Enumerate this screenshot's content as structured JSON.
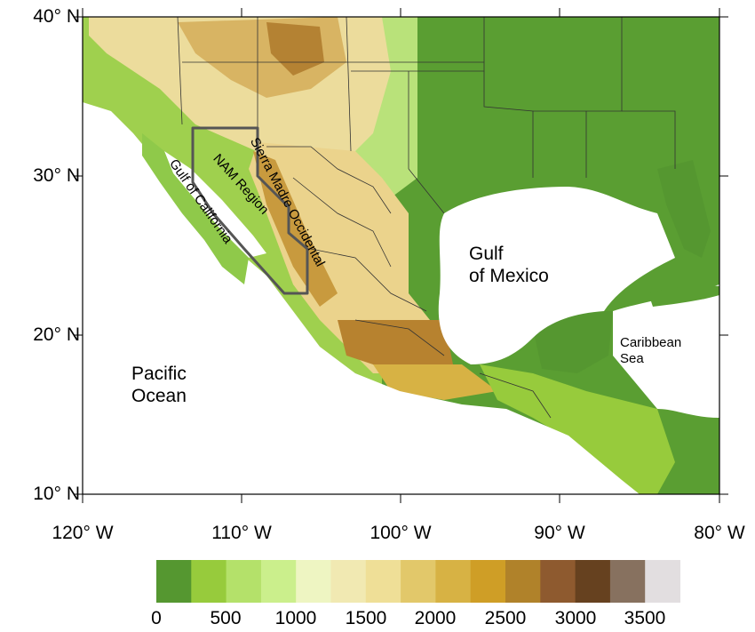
{
  "map": {
    "lat_labels": [
      "40° N",
      "30° N",
      "20° N",
      "10° N"
    ],
    "lon_labels": [
      "120° W",
      "110° W",
      "100° W",
      "90° W",
      "80° W"
    ],
    "places": {
      "pacific": "Pacific\nOcean",
      "gulf_mexico": "Gulf\nof Mexico",
      "caribbean": "Caribbean\nSea",
      "gulf_california": "Gulf of California",
      "nam_region": "NAM Region",
      "sierra": "Sierra Madre Occidental"
    }
  },
  "colorbar": {
    "colors": [
      "#559730",
      "#97cb3c",
      "#b4e16a",
      "#cbef8c",
      "#eef5c2",
      "#f1e9b2",
      "#efdf97",
      "#e2c86a",
      "#d7b244",
      "#cf9e26",
      "#b0822a",
      "#8e5a2f",
      "#66411f",
      "#87715f",
      "#e2dee0"
    ],
    "labels": [
      "0",
      "500",
      "1000",
      "1500",
      "2000",
      "2500",
      "3000",
      "3500"
    ]
  }
}
